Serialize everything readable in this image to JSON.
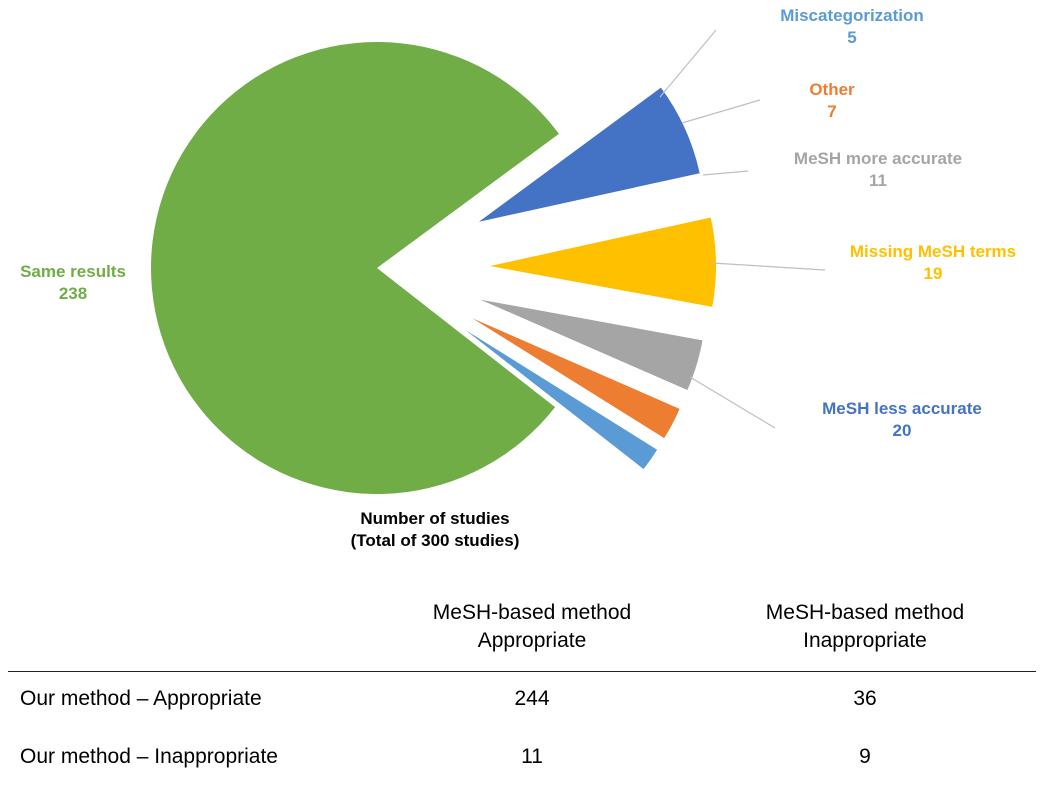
{
  "chart_data": {
    "type": "pie",
    "caption_line1": "Number of studies",
    "caption_line2": "(Total of 300 studies)",
    "slices": [
      {
        "label": "Same results",
        "value": 238,
        "color": "#70AD47"
      },
      {
        "label": "MeSH less accurate",
        "value": 20,
        "color": "#4472C4"
      },
      {
        "label": "Missing MeSH terms",
        "value": 19,
        "color": "#FFC000"
      },
      {
        "label": "MeSH more accurate",
        "value": 11,
        "color": "#A5A5A5"
      },
      {
        "label": "Other",
        "value": 7,
        "color": "#ED7D31"
      },
      {
        "label": "Miscategorization",
        "value": 5,
        "color": "#5B9BD5"
      }
    ]
  },
  "table": {
    "col1_line1": "MeSH-based method",
    "col1_line2": "Appropriate",
    "col2_line1": "MeSH-based method",
    "col2_line2": "Inappropriate",
    "rows": [
      {
        "label": "Our method – Appropriate",
        "v1": "244",
        "v2": "36"
      },
      {
        "label": "Our method – Inappropriate",
        "v1": "11",
        "v2": "9"
      }
    ]
  }
}
